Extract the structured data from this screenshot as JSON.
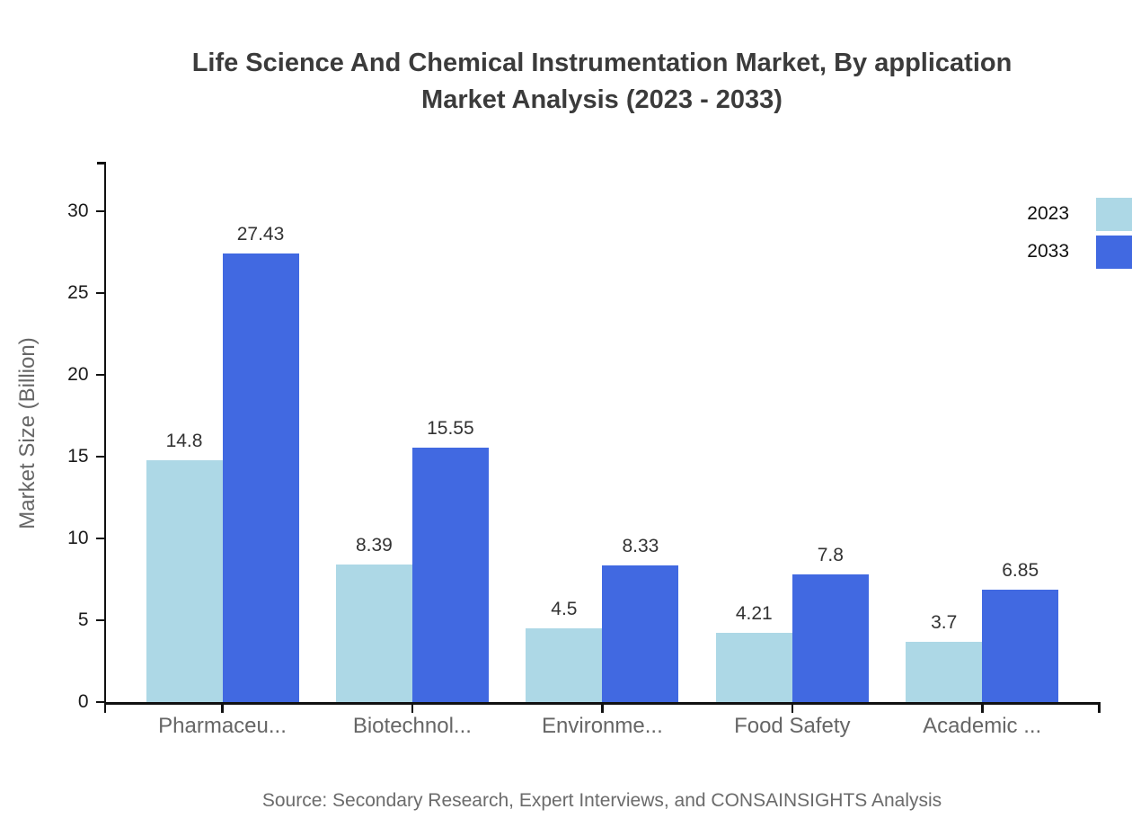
{
  "title": {
    "line1": "Life Science And Chemical Instrumentation Market, By application",
    "line2": "Market Analysis (2023 - 2033)"
  },
  "footer": {
    "source": "Source: Secondary Research, Expert Interviews, and CONSAINSIGHTS Analysis"
  },
  "colors": {
    "series_2023": "#ADD8E6",
    "series_2033": "#4169E1",
    "axis": "#111111",
    "title_text": "#3b3b3b",
    "category_text": "#666666",
    "footer_text": "#6b6b6b"
  },
  "chart_data": {
    "type": "bar",
    "title": "Life Science And Chemical Instrumentation Market, By application Market Analysis (2023 - 2033)",
    "categories": [
      "Pharmaceu...",
      "Biotechnol...",
      "Environme...",
      "Food Safety",
      "Academic ..."
    ],
    "series": [
      {
        "name": "2023",
        "color": "#ADD8E6",
        "values": [
          14.8,
          8.39,
          4.5,
          4.21,
          3.7
        ]
      },
      {
        "name": "2033",
        "color": "#4169E1",
        "values": [
          27.43,
          15.55,
          8.33,
          7.8,
          6.85
        ]
      }
    ],
    "xlabel": "",
    "ylabel": "Market Size (Billion)",
    "ylim": [
      0,
      33
    ],
    "yticks": [
      0,
      5,
      10,
      15,
      20,
      25,
      30
    ],
    "grid": false,
    "value_labels": true,
    "legend_position": "top-right"
  }
}
